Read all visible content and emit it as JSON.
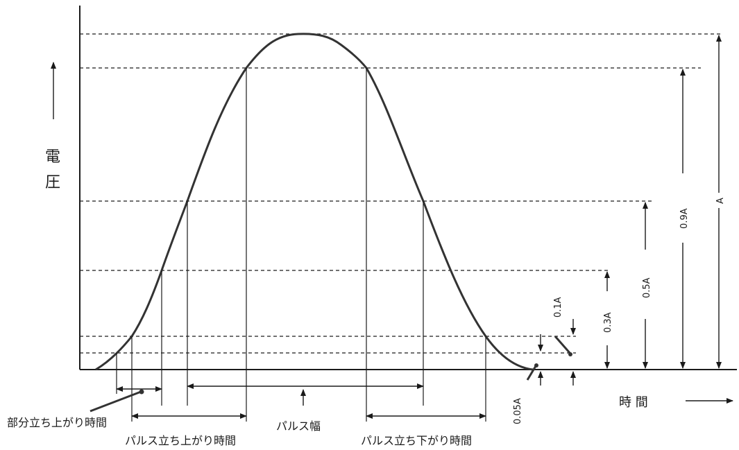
{
  "diagram": {
    "y_axis_label_1": "電",
    "y_axis_label_2": "圧",
    "x_axis_label": "時 間",
    "labels": {
      "partial_rise_time": "部分立ち上がり時間",
      "pulse_rise_time": "パルス立ち上がり時間",
      "pulse_width": "パルス幅",
      "pulse_fall_time": "パルス立ち下がり時間",
      "level_005A": "0.05A",
      "level_01A": "0.1A",
      "level_03A": "0.3A",
      "level_05A": "0.5A",
      "level_09A": "0.9A",
      "level_A": "A"
    },
    "colors": {
      "line": "#1a1a1a",
      "curve": "#333333"
    }
  }
}
